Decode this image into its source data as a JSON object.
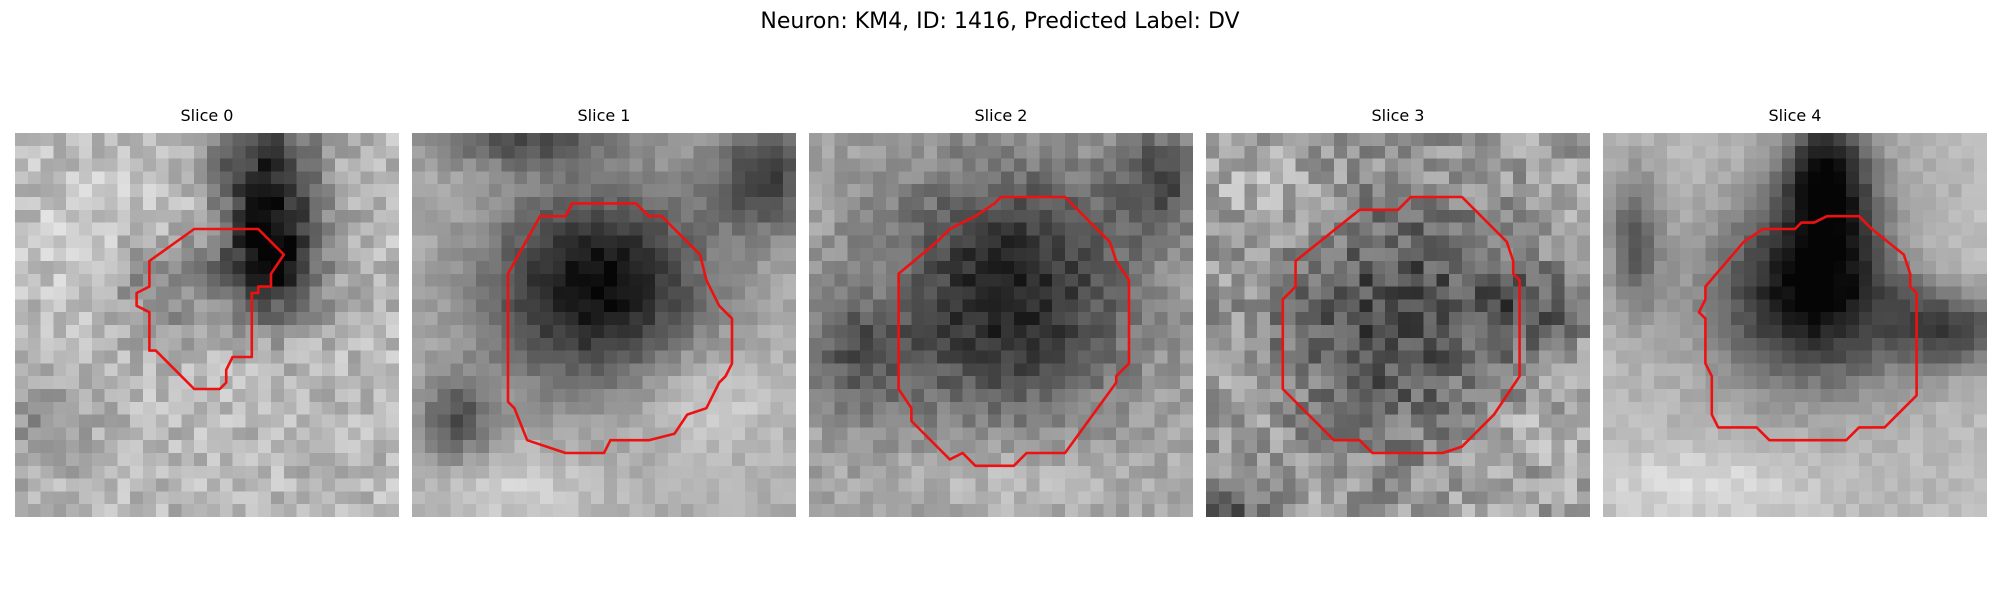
{
  "figure": {
    "title": "Neuron: KM4, ID: 1416, Predicted Label: DV"
  },
  "colors": {
    "contour": "#ee1111",
    "background": "#ffffff",
    "colormap": "gray"
  },
  "panels": [
    {
      "title": "Slice 0",
      "icon": "grayscale-microscopy-image"
    },
    {
      "title": "Slice 1",
      "icon": "grayscale-microscopy-image"
    },
    {
      "title": "Slice 2",
      "icon": "grayscale-microscopy-image"
    },
    {
      "title": "Slice 3",
      "icon": "grayscale-microscopy-image"
    },
    {
      "title": "Slice 4",
      "icon": "grayscale-microscopy-image"
    }
  ]
}
